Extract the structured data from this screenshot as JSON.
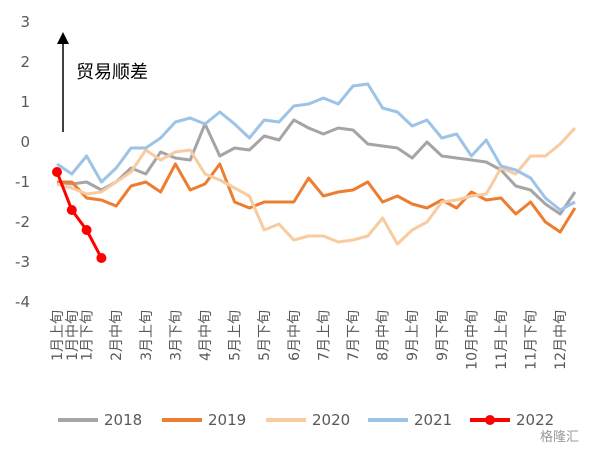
{
  "chart_data": {
    "type": "line",
    "annotation": "贸易顺差",
    "watermark": "格隆汇",
    "categories": [
      "1月上旬",
      "1月中旬",
      "1月下旬",
      null,
      "2月中旬",
      null,
      "3月上旬",
      null,
      "3月下旬",
      null,
      "4月中旬",
      null,
      "5月上旬",
      null,
      "5月下旬",
      null,
      "6月中旬",
      null,
      "7月上旬",
      null,
      "7月下旬",
      null,
      "8月中旬",
      null,
      "9月上旬",
      null,
      "9月下旬",
      null,
      "10月中旬",
      null,
      "11月上旬",
      null,
      "11月下旬",
      null,
      "12月中旬",
      null
    ],
    "series": [
      {
        "name": "2018",
        "color": "#a5a5a5",
        "values": [
          -1.0,
          -1.05,
          -1.0,
          -1.2,
          -1.0,
          -0.65,
          -0.8,
          -0.25,
          -0.4,
          -0.45,
          0.45,
          -0.35,
          -0.15,
          -0.2,
          0.15,
          0.05,
          0.55,
          0.35,
          0.2,
          0.35,
          0.3,
          -0.05,
          -0.1,
          -0.15,
          -0.4,
          0.0,
          -0.35,
          -0.4,
          -0.45,
          -0.5,
          -0.7,
          -1.1,
          -1.2,
          -1.55,
          -1.8,
          -1.25
        ]
      },
      {
        "name": "2019",
        "color": "#ed7d31",
        "values": [
          -1.0,
          -1.0,
          -1.4,
          -1.45,
          -1.6,
          -1.1,
          -1.0,
          -1.25,
          -0.55,
          -1.2,
          -1.05,
          -0.55,
          -1.5,
          -1.65,
          -1.5,
          -1.5,
          -1.5,
          -0.9,
          -1.35,
          -1.25,
          -1.2,
          -1.0,
          -1.5,
          -1.35,
          -1.55,
          -1.65,
          -1.45,
          -1.65,
          -1.25,
          -1.45,
          -1.4,
          -1.8,
          -1.5,
          -2.0,
          -2.25,
          -1.65
        ]
      },
      {
        "name": "2020",
        "color": "#f8cba0",
        "values": [
          -1.05,
          -1.15,
          -1.3,
          -1.25,
          -1.0,
          -0.75,
          -0.2,
          -0.45,
          -0.25,
          -0.2,
          -0.8,
          -0.95,
          -1.15,
          -1.35,
          -2.2,
          -2.05,
          -2.45,
          -2.35,
          -2.35,
          -2.5,
          -2.45,
          -2.35,
          -1.9,
          -2.55,
          -2.2,
          -2.0,
          -1.5,
          -1.45,
          -1.35,
          -1.3,
          -0.65,
          -0.8,
          -0.35,
          -0.35,
          -0.05,
          0.35
        ]
      },
      {
        "name": "2021",
        "color": "#9dc3e6",
        "values": [
          -0.55,
          -0.8,
          -0.35,
          -1.0,
          -0.65,
          -0.15,
          -0.15,
          0.1,
          0.5,
          0.6,
          0.45,
          0.75,
          0.45,
          0.1,
          0.55,
          0.5,
          0.9,
          0.95,
          1.1,
          0.95,
          1.4,
          1.45,
          0.85,
          0.75,
          0.4,
          0.55,
          0.1,
          0.2,
          -0.35,
          0.05,
          -0.6,
          -0.7,
          -0.9,
          -1.4,
          -1.7,
          -1.5
        ]
      },
      {
        "name": "2022",
        "color": "#ff0000",
        "markers": true,
        "values": [
          -0.75,
          -1.7,
          -2.2,
          -2.9,
          null,
          null,
          null,
          null,
          null,
          null,
          null,
          null,
          null,
          null,
          null,
          null,
          null,
          null,
          null,
          null,
          null,
          null,
          null,
          null,
          null,
          null,
          null,
          null,
          null,
          null,
          null,
          null,
          null,
          null,
          null,
          null
        ]
      }
    ],
    "ylim": [
      -4,
      3
    ],
    "yticks": [
      -4,
      -3,
      -2,
      -1,
      0,
      1,
      2,
      3
    ],
    "grid": false,
    "legend": "bottom"
  }
}
